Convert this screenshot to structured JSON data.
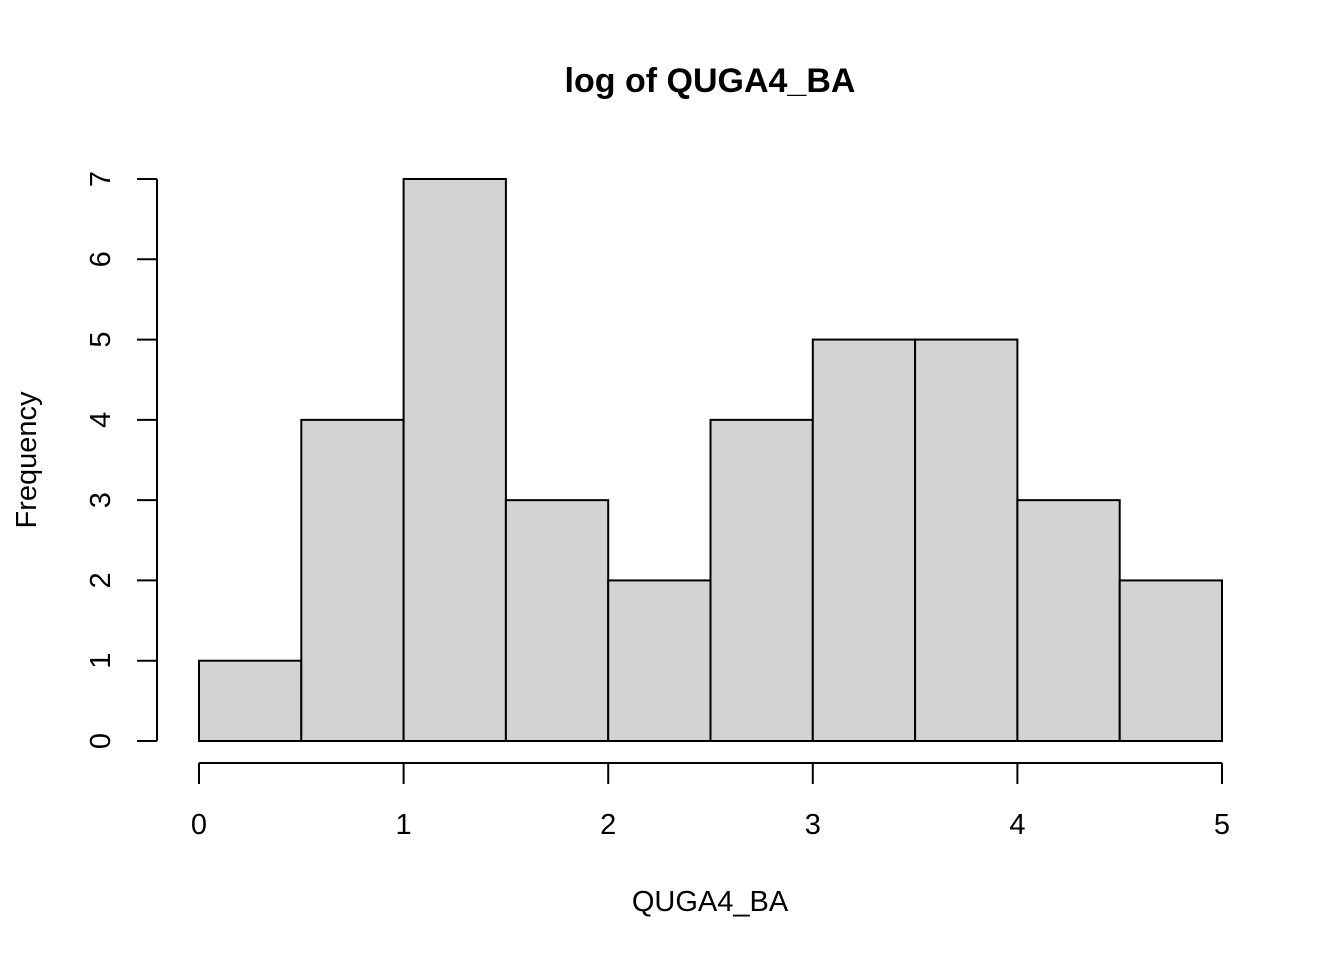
{
  "chart_data": {
    "type": "bar",
    "title": "log of QUGA4_BA",
    "xlabel": "QUGA4_BA",
    "ylabel": "Frequency",
    "bins": [
      {
        "x0": 0.0,
        "x1": 0.5,
        "count": 1
      },
      {
        "x0": 0.5,
        "x1": 1.0,
        "count": 4
      },
      {
        "x0": 1.0,
        "x1": 1.5,
        "count": 7
      },
      {
        "x0": 1.5,
        "x1": 2.0,
        "count": 3
      },
      {
        "x0": 2.0,
        "x1": 2.5,
        "count": 2
      },
      {
        "x0": 2.5,
        "x1": 3.0,
        "count": 4
      },
      {
        "x0": 3.0,
        "x1": 3.5,
        "count": 5
      },
      {
        "x0": 3.5,
        "x1": 4.0,
        "count": 5
      },
      {
        "x0": 4.0,
        "x1": 4.5,
        "count": 3
      },
      {
        "x0": 4.5,
        "x1": 5.0,
        "count": 2
      }
    ],
    "xlim": [
      0,
      5
    ],
    "ylim": [
      0,
      7
    ],
    "xticks": [
      "0",
      "1",
      "2",
      "3",
      "4",
      "5"
    ],
    "yticks": [
      "0",
      "1",
      "2",
      "3",
      "4",
      "5",
      "6",
      "7"
    ],
    "bar_color": "#d3d3d3",
    "grid": false
  }
}
